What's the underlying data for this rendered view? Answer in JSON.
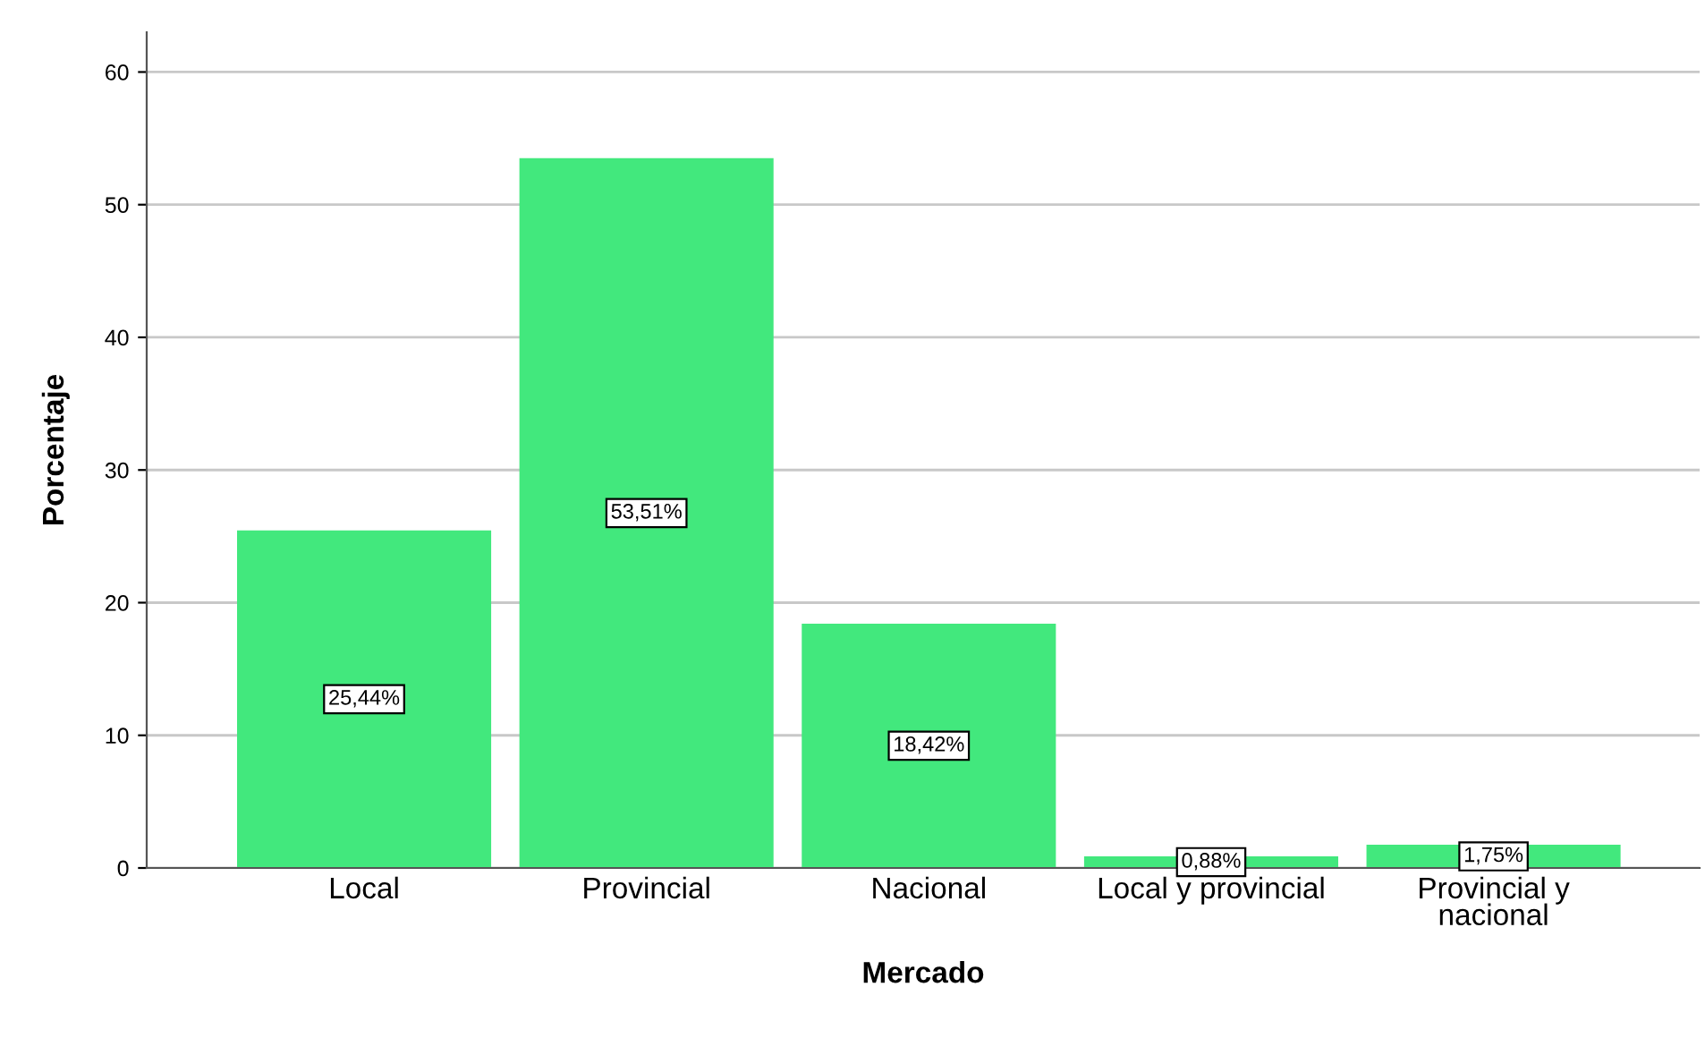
{
  "chart_data": {
    "type": "bar",
    "xlabel": "Mercado",
    "ylabel": "Porcentaje",
    "categories": [
      "Local",
      "Provincial",
      "Nacional",
      "Local y provincial",
      "Provincial y\nnacional"
    ],
    "values": [
      25.44,
      53.51,
      18.42,
      0.88,
      1.75
    ],
    "value_labels": [
      "25,44%",
      "53,51%",
      "18,42%",
      "0,88%",
      "1,75%"
    ],
    "color": "#42e87d",
    "ylim": [
      0,
      63
    ],
    "yticks": [
      0,
      10,
      20,
      30,
      40,
      50,
      60
    ],
    "grid": "y",
    "legend": false
  }
}
